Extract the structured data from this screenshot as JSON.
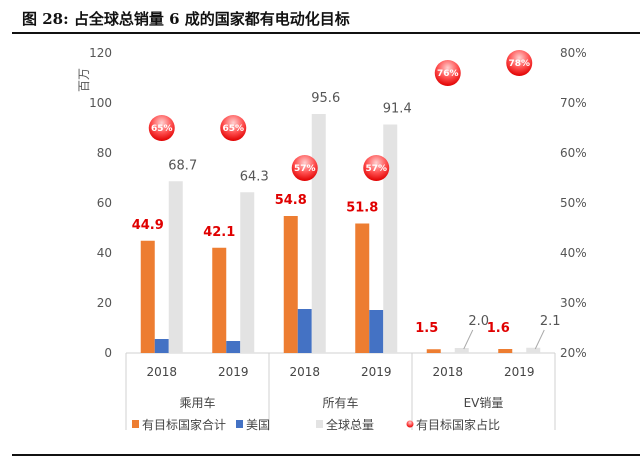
{
  "title": "图 28: 占全球总销量 6 成的国家都有电动化目标",
  "chart_data": {
    "type": "bar",
    "title": "图 28: 占全球总销量 6 成的国家都有电动化目标",
    "ylabel": "百万",
    "ylim": [
      0,
      120
    ],
    "yticks": [
      "0",
      "20",
      "40",
      "60",
      "80",
      "100",
      "120"
    ],
    "y2lim": [
      20,
      80
    ],
    "y2ticks": [
      "20%",
      "30%",
      "40%",
      "50%",
      "60%",
      "70%",
      "80%"
    ],
    "grid": false,
    "legend": "bottom",
    "categories": [
      "2018",
      "2019",
      "2018",
      "2019",
      "2018",
      "2019"
    ],
    "groups": [
      "乘用车",
      "所有车",
      "EV销量"
    ],
    "series": [
      {
        "name": "有目标国家合计",
        "color": "#ed7d31",
        "values": [
          44.9,
          42.1,
          54.8,
          51.8,
          1.5,
          1.6
        ],
        "labels": [
          "44.9",
          "42.1",
          "54.8",
          "51.8",
          "1.5",
          "1.6"
        ]
      },
      {
        "name": "美国",
        "color": "#4472c4",
        "values": [
          5.6,
          4.8,
          17.6,
          17.2,
          0,
          0
        ]
      },
      {
        "name": "全球总量",
        "color": "#e3e3e3",
        "values": [
          68.7,
          64.3,
          95.6,
          91.4,
          2.0,
          2.1
        ],
        "labels": [
          "68.7",
          "64.3",
          "95.6",
          "91.4",
          "2.0",
          "2.1"
        ]
      },
      {
        "name": "有目标国家占比",
        "color": "#ff0000",
        "axis": "right",
        "values": [
          65,
          65,
          57,
          57,
          76,
          78
        ],
        "labels": [
          "65%",
          "65%",
          "57%",
          "57%",
          "76%",
          "78%"
        ]
      }
    ]
  }
}
